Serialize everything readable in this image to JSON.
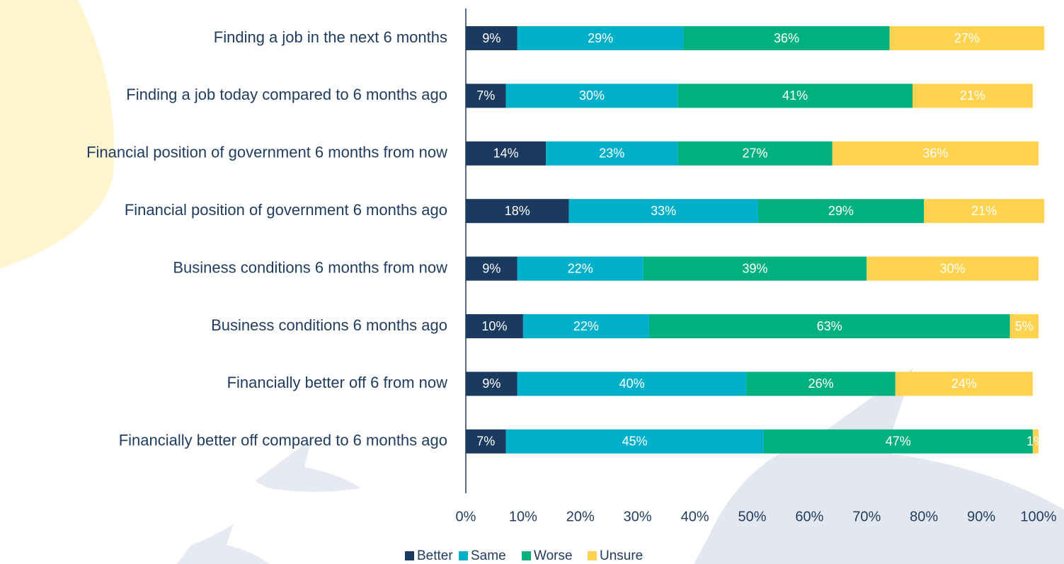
{
  "chart_data": {
    "type": "stacked_bar_horizontal",
    "categories": [
      "Finding a job in the next 6 months",
      "Finding a job today compared to 6 months ago",
      "Financial position of government 6 months from now",
      "Financial position of government 6 months ago",
      "Business conditions 6 months from now",
      "Business conditions 6 months ago",
      "Financially better off 6 from now",
      "Financially better off compared to 6 months ago"
    ],
    "series": [
      {
        "name": "Better",
        "color": "#1b3a5f",
        "values": [
          9,
          7,
          14,
          18,
          9,
          10,
          9,
          7
        ],
        "value_labels": [
          "9%",
          "7%",
          "14%",
          "18%",
          "9%",
          "10%",
          "9%",
          "7%"
        ]
      },
      {
        "name": "Same",
        "color": "#00b0ca",
        "values": [
          29,
          30,
          23,
          33,
          22,
          22,
          40,
          45
        ],
        "value_labels": [
          "29%",
          "30%",
          "23%",
          "33%",
          "22%",
          "22%",
          "40%",
          "45%"
        ]
      },
      {
        "name": "Worse",
        "color": "#00b07e",
        "values": [
          36,
          41,
          27,
          29,
          39,
          63,
          26,
          47
        ],
        "value_labels": [
          "36%",
          "41%",
          "27%",
          "29%",
          "39%",
          "63%",
          "26%",
          "47%"
        ]
      },
      {
        "name": "Unsure",
        "color": "#ffd24f",
        "values": [
          27,
          21,
          36,
          21,
          30,
          5,
          24,
          1
        ],
        "value_labels": [
          "27%",
          "21%",
          "36%",
          "21%",
          "30%",
          "5%",
          "24%",
          "1%"
        ]
      }
    ],
    "xlim": [
      0,
      100
    ],
    "xticks": [
      {
        "value": 0,
        "label": "0%"
      },
      {
        "value": 10,
        "label": "10%"
      },
      {
        "value": 20,
        "label": "20%"
      },
      {
        "value": 30,
        "label": "30%"
      },
      {
        "value": 40,
        "label": "40%"
      },
      {
        "value": 50,
        "label": "50%"
      },
      {
        "value": 60,
        "label": "60%"
      },
      {
        "value": 70,
        "label": "70%"
      },
      {
        "value": 80,
        "label": "80%"
      },
      {
        "value": 90,
        "label": "90%"
      },
      {
        "value": 100,
        "label": "100%"
      }
    ],
    "legend": "bottom"
  }
}
